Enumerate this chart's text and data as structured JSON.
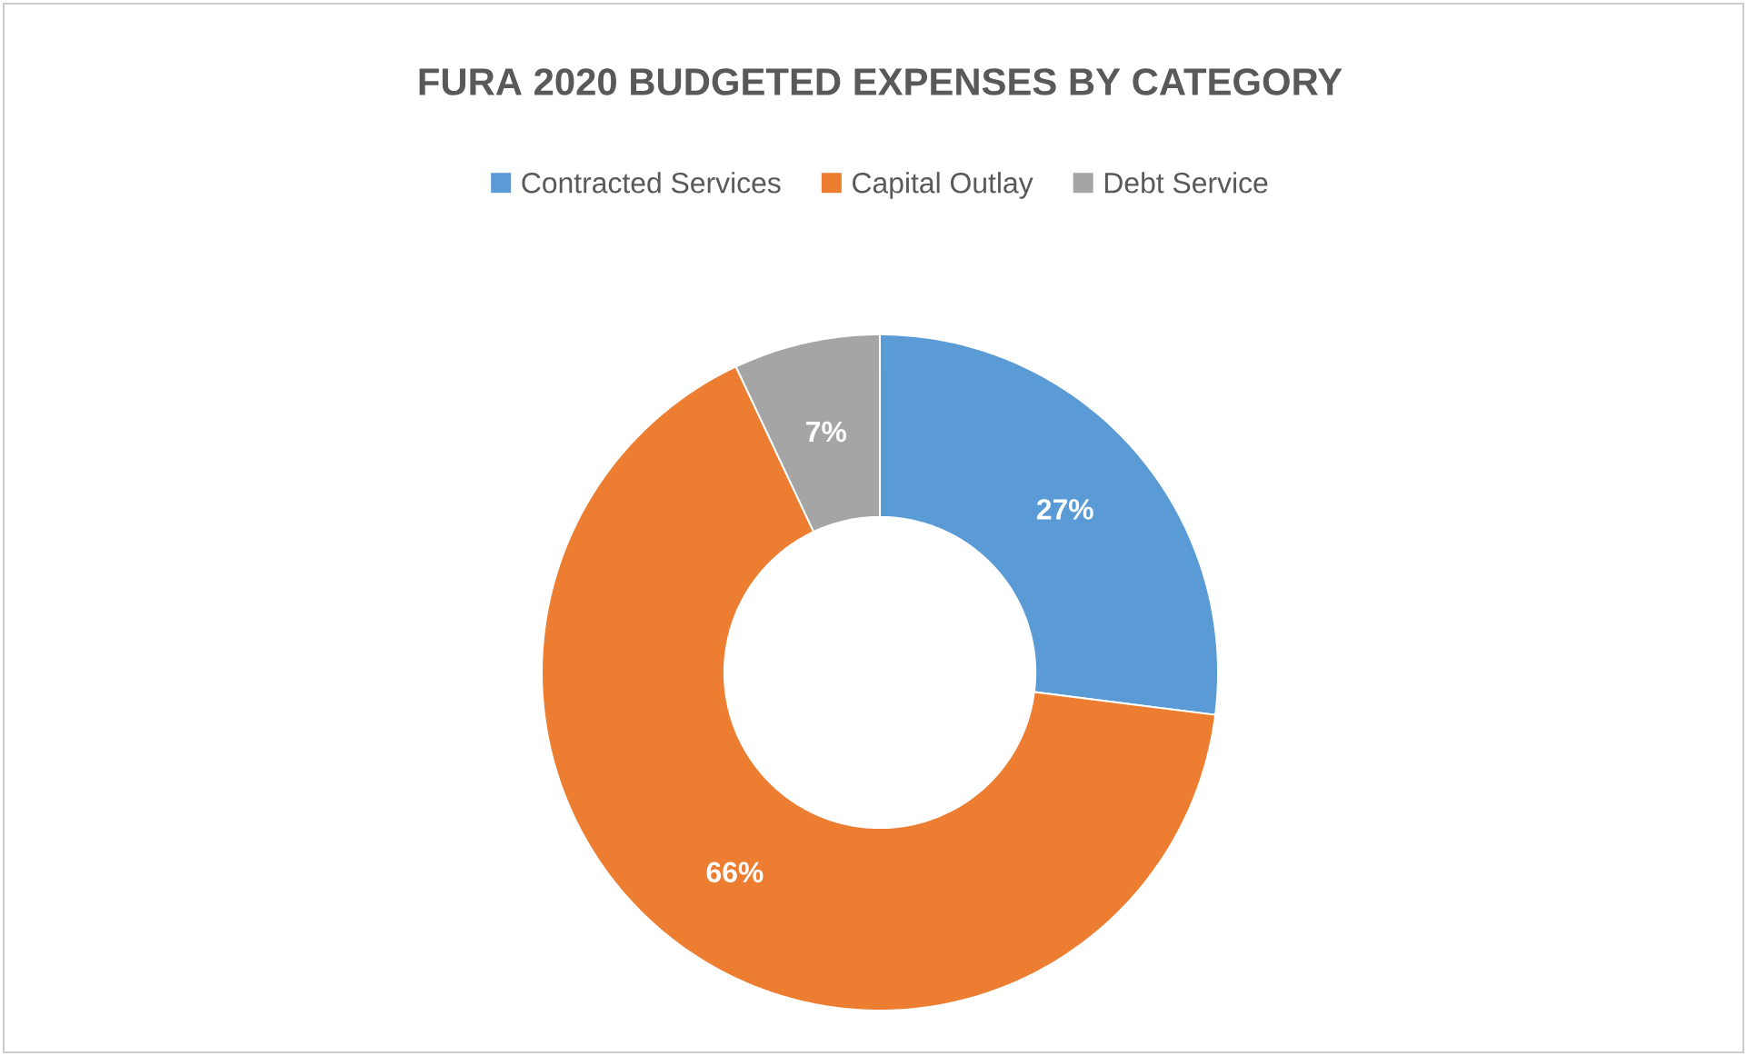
{
  "chart_data": {
    "type": "donut",
    "title": "FURA 2020 BUDGETED EXPENSES BY CATEGORY",
    "categories": [
      "Contracted Services",
      "Capital Outlay",
      "Debt Service"
    ],
    "values": [
      27,
      66,
      7
    ],
    "value_labels": [
      "27%",
      "66%",
      "7%"
    ],
    "colors": [
      "#5b9bd5",
      "#ed7d31",
      "#a5a5a5"
    ],
    "legend": "top"
  }
}
